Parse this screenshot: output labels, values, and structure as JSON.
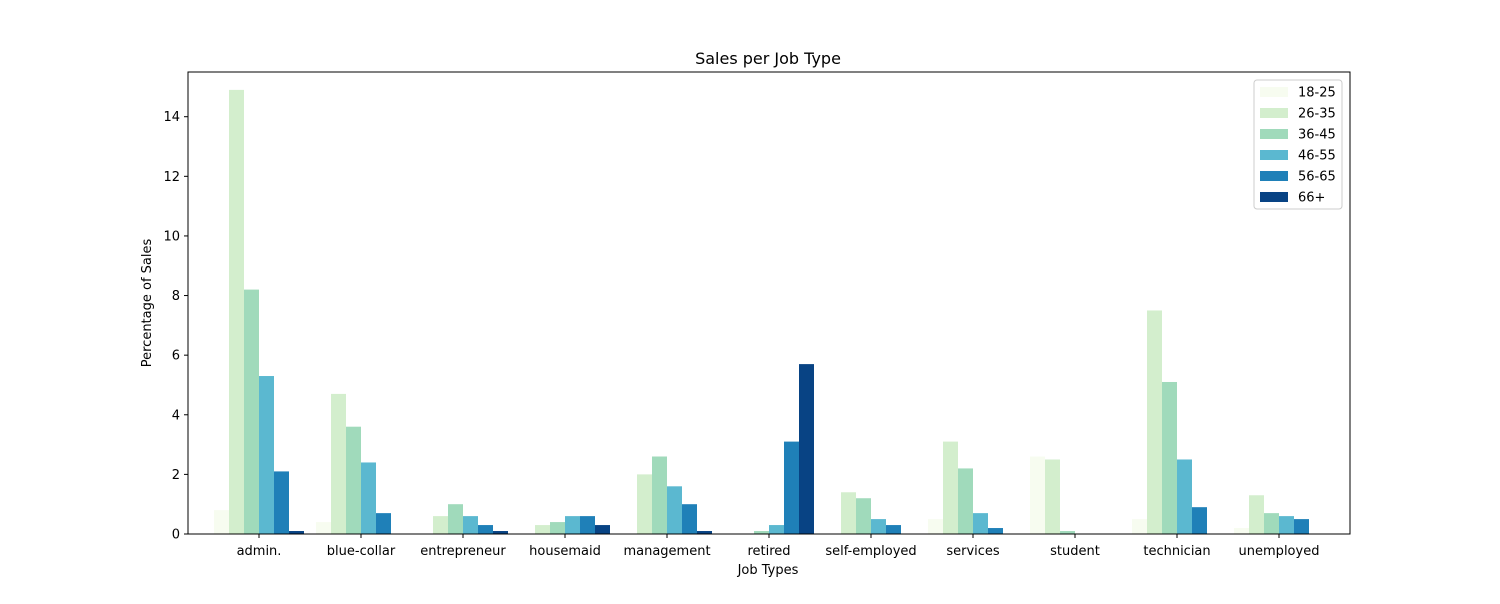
{
  "chart_data": {
    "type": "bar",
    "title": "Sales per Job Type",
    "xlabel": "Job Types",
    "ylabel": "Percentage of Sales",
    "ylim": [
      0,
      15.5
    ],
    "yticks": [
      0,
      2,
      4,
      6,
      8,
      10,
      12,
      14
    ],
    "grid": false,
    "legend_position": "top-right",
    "categories": [
      "admin.",
      "blue-collar",
      "entrepreneur",
      "housemaid",
      "management",
      "retired",
      "self-employed",
      "services",
      "student",
      "technician",
      "unemployed"
    ],
    "series": [
      {
        "name": "18-25",
        "color": "#f7fcf0",
        "values": [
          0.8,
          0.4,
          0.0,
          0.0,
          0.0,
          0.0,
          0.0,
          0.5,
          2.6,
          0.5,
          0.2
        ]
      },
      {
        "name": "26-35",
        "color": "#d3eecd",
        "values": [
          14.9,
          4.7,
          0.6,
          0.3,
          2.0,
          0.0,
          1.4,
          3.1,
          2.5,
          7.5,
          1.3
        ]
      },
      {
        "name": "36-45",
        "color": "#a0dabb",
        "values": [
          8.2,
          3.6,
          1.0,
          0.4,
          2.6,
          0.1,
          1.2,
          2.2,
          0.1,
          5.1,
          0.7
        ]
      },
      {
        "name": "46-55",
        "color": "#5bb8d0",
        "values": [
          5.3,
          2.4,
          0.6,
          0.6,
          1.6,
          0.3,
          0.5,
          0.7,
          0.0,
          2.5,
          0.6
        ]
      },
      {
        "name": "56-65",
        "color": "#1f80b8",
        "values": [
          2.1,
          0.7,
          0.3,
          0.6,
          1.0,
          3.1,
          0.3,
          0.2,
          0.0,
          0.9,
          0.5
        ]
      },
      {
        "name": "66+",
        "color": "#084384",
        "values": [
          0.1,
          0.0,
          0.1,
          0.3,
          0.1,
          5.7,
          0.0,
          0.0,
          0.0,
          0.0,
          0.0
        ]
      }
    ]
  }
}
